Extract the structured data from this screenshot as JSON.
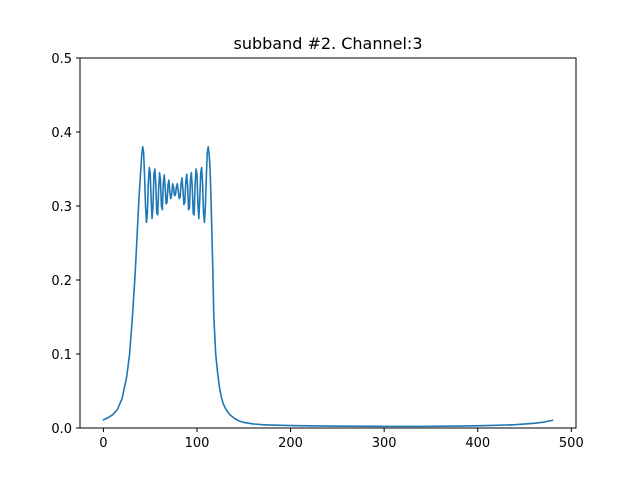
{
  "chart_data": {
    "type": "line",
    "title": "subband #2. Channel:3",
    "xlabel": "",
    "ylabel": "",
    "xlim": [
      -25,
      505
    ],
    "ylim": [
      0,
      0.5
    ],
    "grid": false,
    "x_ticks": [
      0,
      100,
      200,
      300,
      400,
      500
    ],
    "x_tick_labels": [
      "0",
      "100",
      "200",
      "300",
      "400",
      "500"
    ],
    "y_ticks": [
      0.0,
      0.1,
      0.2,
      0.3,
      0.4,
      0.5
    ],
    "y_tick_labels": [
      "0.0",
      "0.1",
      "0.2",
      "0.3",
      "0.4",
      "0.5"
    ],
    "series": [
      {
        "color": "#1f77b4",
        "x": [
          0,
          5,
          10,
          15,
          20,
          25,
          28,
          31,
          34,
          36,
          38,
          40,
          41,
          42,
          43,
          44,
          45,
          46,
          47,
          48,
          49,
          50,
          51,
          52,
          53,
          54,
          55,
          56,
          57,
          58,
          59,
          60,
          61,
          62,
          63,
          64,
          65,
          66,
          67,
          68,
          69,
          70,
          71,
          72,
          73,
          74,
          75,
          76,
          77,
          78,
          79,
          80,
          81,
          82,
          83,
          84,
          85,
          86,
          87,
          88,
          89,
          90,
          91,
          92,
          93,
          94,
          95,
          96,
          97,
          98,
          99,
          100,
          101,
          102,
          103,
          104,
          105,
          106,
          107,
          108,
          109,
          110,
          111,
          112,
          113,
          114,
          115,
          116,
          117,
          118,
          120,
          122,
          124,
          126,
          128,
          131,
          135,
          140,
          145,
          150,
          160,
          170,
          180,
          200,
          230,
          260,
          300,
          340,
          380,
          410,
          440,
          460,
          470,
          480
        ],
        "y": [
          0.011,
          0.014,
          0.018,
          0.025,
          0.04,
          0.07,
          0.1,
          0.15,
          0.21,
          0.26,
          0.31,
          0.35,
          0.37,
          0.38,
          0.372,
          0.34,
          0.3,
          0.278,
          0.29,
          0.33,
          0.352,
          0.345,
          0.31,
          0.283,
          0.3,
          0.343,
          0.35,
          0.33,
          0.29,
          0.288,
          0.322,
          0.345,
          0.335,
          0.3,
          0.295,
          0.33,
          0.342,
          0.325,
          0.303,
          0.305,
          0.328,
          0.335,
          0.318,
          0.31,
          0.316,
          0.33,
          0.325,
          0.314,
          0.315,
          0.326,
          0.33,
          0.32,
          0.31,
          0.312,
          0.33,
          0.338,
          0.322,
          0.302,
          0.305,
          0.332,
          0.343,
          0.327,
          0.295,
          0.298,
          0.335,
          0.345,
          0.323,
          0.29,
          0.288,
          0.33,
          0.35,
          0.343,
          0.302,
          0.283,
          0.31,
          0.345,
          0.352,
          0.33,
          0.29,
          0.278,
          0.3,
          0.34,
          0.372,
          0.38,
          0.37,
          0.35,
          0.31,
          0.26,
          0.21,
          0.15,
          0.1,
          0.075,
          0.055,
          0.042,
          0.033,
          0.025,
          0.018,
          0.013,
          0.0095,
          0.0075,
          0.0055,
          0.0045,
          0.004,
          0.0033,
          0.0028,
          0.0024,
          0.0022,
          0.0022,
          0.0026,
          0.0033,
          0.0045,
          0.0063,
          0.0078,
          0.0105
        ]
      }
    ]
  }
}
